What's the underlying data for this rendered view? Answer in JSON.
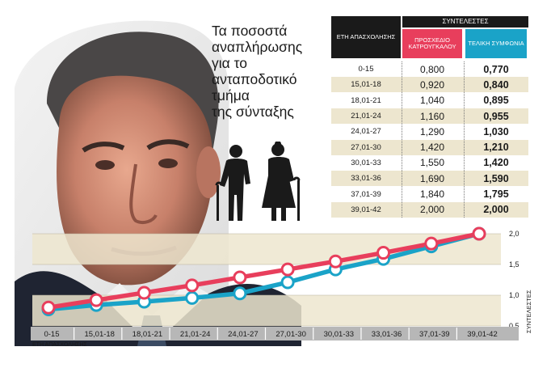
{
  "title_lines": [
    "Τα ποσοστά",
    "αναπλήρωσης",
    "για το",
    "ανταποδοτικό",
    "τμήμα",
    "της σύνταξης"
  ],
  "table": {
    "group_header": "ΣΥΝΤΕΛΕΣΤΕΣ",
    "col_range": "ΕΤΗ ΑΠΑΣΧΟΛΗΣΗΣ",
    "col_draft": "ΠΡΟΣΧΕΔΙΟ ΚΑΤΡΟΥΓΚΑΛΟΥ",
    "col_final": "ΤΕΛΙΚΗ ΣΥΜΦΩΝΙΑ",
    "rows": [
      {
        "range": "0-15",
        "draft": "0,800",
        "final": "0,770"
      },
      {
        "range": "15,01-18",
        "draft": "0,920",
        "final": "0,840"
      },
      {
        "range": "18,01-21",
        "draft": "1,040",
        "final": "0,895"
      },
      {
        "range": "21,01-24",
        "draft": "1,160",
        "final": "0,955"
      },
      {
        "range": "24,01-27",
        "draft": "1,290",
        "final": "1,030"
      },
      {
        "range": "27,01-30",
        "draft": "1,420",
        "final": "1,210"
      },
      {
        "range": "30,01-33",
        "draft": "1,550",
        "final": "1,420"
      },
      {
        "range": "33,01-36",
        "draft": "1,690",
        "final": "1,590"
      },
      {
        "range": "37,01-39",
        "draft": "1,840",
        "final": "1,795"
      },
      {
        "range": "39,01-42",
        "draft": "2,000",
        "final": "2,000"
      }
    ]
  },
  "colors": {
    "draft": "#e83e5c",
    "final": "#1aa3c8",
    "band": "#ede6cf",
    "dark": "#1a1a1a"
  },
  "chart_data": {
    "type": "line",
    "categories": [
      "0-15",
      "15,01-18",
      "18,01-21",
      "21,01-24",
      "24,01-27",
      "27,01-30",
      "30,01-33",
      "33,01-36",
      "37,01-39",
      "39,01-42"
    ],
    "series": [
      {
        "name": "ΠΡΟΣΧΕΔΙΟ ΚΑΤΡΟΥΓΚΑΛΟΥ",
        "color": "#e83e5c",
        "values": [
          0.8,
          0.92,
          1.04,
          1.16,
          1.29,
          1.42,
          1.55,
          1.69,
          1.84,
          2.0
        ]
      },
      {
        "name": "ΤΕΛΙΚΗ ΣΥΜΦΩΝΙΑ",
        "color": "#1aa3c8",
        "values": [
          0.77,
          0.84,
          0.895,
          0.955,
          1.03,
          1.21,
          1.42,
          1.59,
          1.795,
          2.0
        ]
      }
    ],
    "xlabel": "ΕΤΗ ΑΠΑΣΧΟΛΗΣΗΣ",
    "ylabel": "ΣΥΝΤΕΛΕΣΤΕΣ",
    "yticks": [
      "0,5",
      "1,0",
      "1,5",
      "2,0"
    ],
    "ytick_values": [
      0.5,
      1.0,
      1.5,
      2.0
    ],
    "ylim": [
      0.5,
      2.0
    ]
  }
}
